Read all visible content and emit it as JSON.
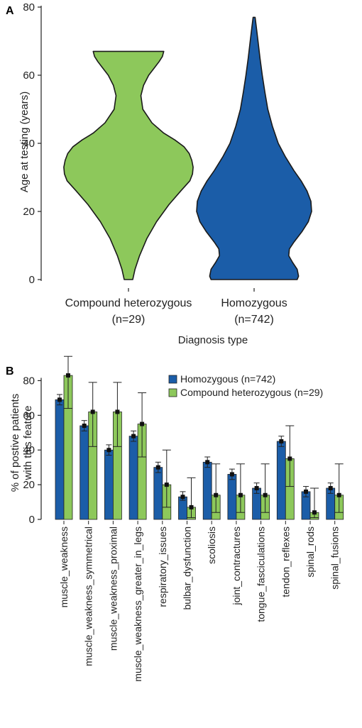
{
  "chart_data": [
    {
      "panel_label": "A",
      "type": "violin",
      "ylabel": "Age at testing (years)",
      "xlabel": "Diagnosis type",
      "ylim": [
        0,
        80
      ],
      "yticks": [
        "0",
        "20",
        "40",
        "60",
        "80"
      ],
      "categories": [
        {
          "line1": "Compound heterozygous",
          "line2": "(n=29)",
          "color": "#8DC85B",
          "profile": [
            [
              0,
              1.3
            ],
            [
              3,
              2.0
            ],
            [
              7,
              3.4
            ],
            [
              12,
              5.6
            ],
            [
              17,
              8.6
            ],
            [
              22,
              12.4
            ],
            [
              26,
              16.0
            ],
            [
              29,
              18.8
            ],
            [
              31,
              19.6
            ],
            [
              33,
              19.8
            ],
            [
              35,
              19.4
            ],
            [
              37,
              18.6
            ],
            [
              39,
              17.0
            ],
            [
              41,
              14.2
            ],
            [
              43,
              10.8
            ],
            [
              46,
              7.2
            ],
            [
              50,
              4.4
            ],
            [
              54,
              3.8
            ],
            [
              57,
              4.6
            ],
            [
              60,
              6.2
            ],
            [
              62,
              7.8
            ],
            [
              64,
              9.4
            ],
            [
              65.5,
              10.4
            ],
            [
              67,
              10.8
            ]
          ]
        },
        {
          "line1": "Homozygous",
          "line2": "(n=742)",
          "color": "#1B5DA8",
          "profile": [
            [
              0,
              13.2
            ],
            [
              1,
              13.6
            ],
            [
              3,
              13.2
            ],
            [
              5,
              11.8
            ],
            [
              7,
              10.6
            ],
            [
              9,
              10.8
            ],
            [
              11,
              12.2
            ],
            [
              14,
              14.6
            ],
            [
              17,
              16.6
            ],
            [
              20,
              17.6
            ],
            [
              23,
              17.4
            ],
            [
              26,
              16.2
            ],
            [
              29,
              14.4
            ],
            [
              32,
              12.2
            ],
            [
              36,
              9.6
            ],
            [
              40,
              7.4
            ],
            [
              45,
              5.6
            ],
            [
              50,
              4.2
            ],
            [
              55,
              3.3
            ],
            [
              60,
              2.5
            ],
            [
              65,
              1.8
            ],
            [
              70,
              1.2
            ],
            [
              74,
              0.7
            ],
            [
              77,
              0.3
            ]
          ]
        }
      ]
    },
    {
      "panel_label": "B",
      "type": "bar",
      "ylabel_line1": "% of postive patients",
      "ylabel_line2": "with this feature",
      "ylim": [
        0,
        90
      ],
      "yticks": [
        "0",
        "20",
        "40",
        "60",
        "80"
      ],
      "categories": [
        "muscle_weakness",
        "muscle_weakness_symmetrical",
        "muscle_weakness_proximal",
        "muscle_weakness_greater_in_legs",
        "respiratory_issues",
        "bulbar_dysfunction",
        "scoliosis",
        "joint_contractures",
        "tongue_fasciculations",
        "tendon_reflexes",
        "spinal_rods",
        "spinal_fusions"
      ],
      "series": [
        {
          "name": "Homozygous (n=742)",
          "color": "#1B5DA8",
          "values": [
            69,
            54,
            40,
            48,
            30,
            13,
            33,
            26,
            18,
            45,
            16,
            18
          ],
          "err_low": [
            66,
            51,
            37,
            45,
            27,
            11,
            30,
            23,
            15,
            42,
            13,
            15
          ],
          "err_high": [
            72,
            57,
            43,
            51,
            33,
            16,
            36,
            29,
            21,
            48,
            19,
            21
          ]
        },
        {
          "name": "Compound heterozygous (n=29)",
          "color": "#8DC85B",
          "values": [
            83,
            62,
            62,
            55,
            20,
            7,
            14,
            14,
            14,
            35,
            4,
            14
          ],
          "err_low": [
            64,
            42,
            42,
            36,
            7,
            1,
            4,
            4,
            4,
            19,
            1,
            4
          ],
          "err_high": [
            94,
            79,
            79,
            73,
            40,
            24,
            32,
            32,
            32,
            54,
            18,
            32
          ]
        }
      ],
      "legend_position": "top-right"
    }
  ]
}
